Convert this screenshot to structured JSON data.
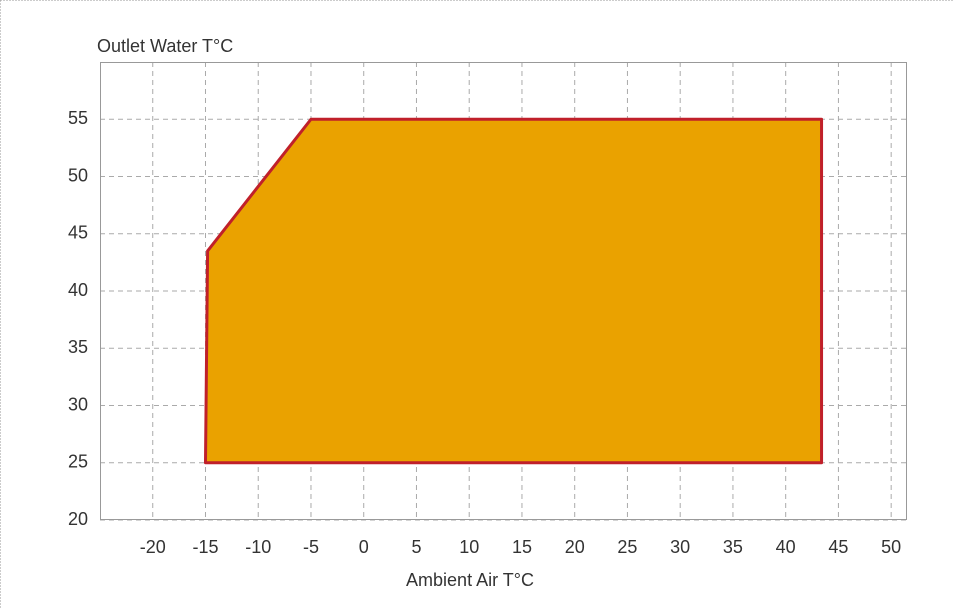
{
  "chart_data": {
    "type": "area",
    "x_label": "Ambient Air T°C",
    "y_label": "Outlet Water T°C",
    "x": [
      -15,
      -14.8,
      -5,
      43.4,
      43.4
    ],
    "values": [
      25,
      43.5,
      55,
      55,
      25
    ],
    "color": "#eaa200",
    "edge_color": "#c0202a",
    "xlim": [
      -25,
      51.5
    ],
    "xticks": [
      -20,
      -15,
      -10,
      -5,
      0,
      5,
      10,
      15,
      20,
      25,
      30,
      35,
      40,
      45,
      50
    ],
    "ylim": [
      20,
      60
    ],
    "yticks": [
      20,
      25,
      30,
      35,
      40,
      45,
      50,
      55
    ],
    "grid": true
  }
}
